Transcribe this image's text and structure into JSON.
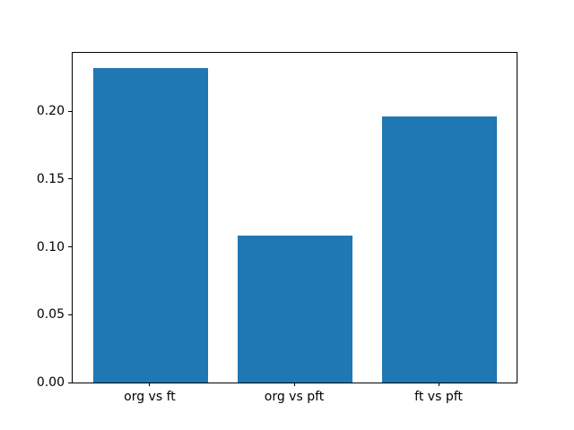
{
  "chart_data": {
    "type": "bar",
    "title": "",
    "xlabel": "",
    "ylabel": "",
    "categories": [
      "org vs ft",
      "org vs pft",
      "ft vs pft"
    ],
    "values": [
      0.232,
      0.108,
      0.196
    ],
    "ylim": [
      0,
      0.2436
    ],
    "yticks": [
      0.0,
      0.05,
      0.1,
      0.15,
      0.2
    ],
    "ytick_decimals": 2,
    "bar_color": "#1f77b4",
    "axis_color": "#000000",
    "background_color": "#ffffff",
    "grid": false,
    "legend_position": "none"
  }
}
